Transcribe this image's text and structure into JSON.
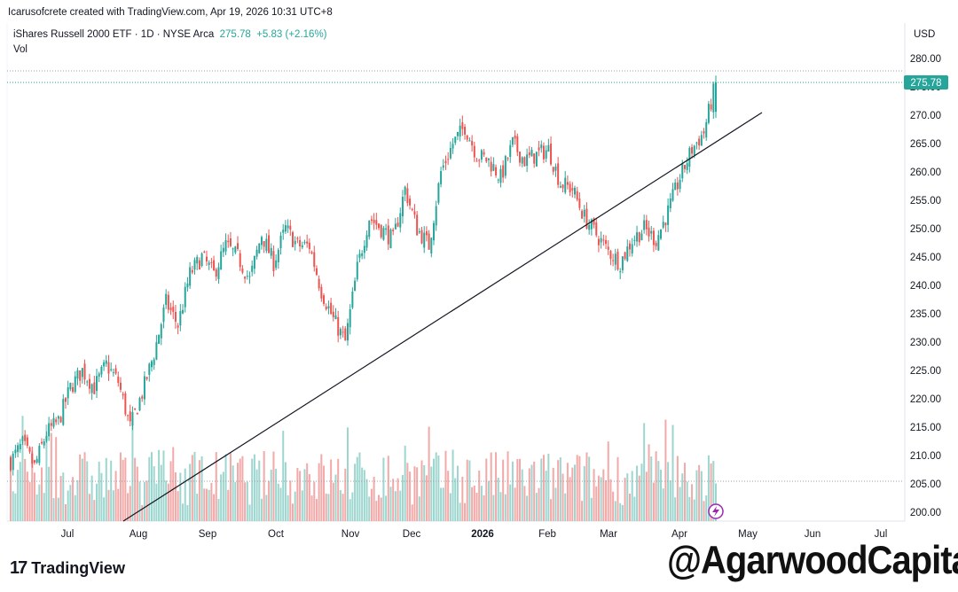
{
  "header": "Icarusofcrete created with TradingView.com, Apr 19, 2026 10:31 UTC+8",
  "legend": {
    "symbol": "iShares Russell 2000 ETF · 1D · NYSE Arca",
    "price": "275.78",
    "change": "+5.83 (+2.16%)",
    "vol_label": "Vol"
  },
  "currency": "USD",
  "price_tag": "275.78",
  "logo": {
    "mark": "17",
    "name": "TradingView"
  },
  "watermark": "@AgarwoodCapital",
  "colors": {
    "up": "#26a69a",
    "down": "#ef5350",
    "vol_up": "#9dd6cf",
    "vol_down": "#f2a9a8"
  },
  "chart_data": {
    "type": "candlestick",
    "title": "iShares Russell 2000 ETF · 1D · NYSE Arca",
    "ylabel": "USD",
    "ylim": [
      198,
      281
    ],
    "yticks": [
      "280.00",
      "275.00",
      "270.00",
      "265.00",
      "260.00",
      "255.00",
      "250.00",
      "245.00",
      "240.00",
      "235.00",
      "230.00",
      "225.00",
      "220.00",
      "215.00",
      "210.00",
      "205.00",
      "200.00"
    ],
    "xticks": [
      "Jul",
      "Aug",
      "Sep",
      "Oct",
      "Nov",
      "Dec",
      "2026",
      "Feb",
      "Mar",
      "Apr",
      "May",
      "Jun",
      "Jul"
    ],
    "close_path": [
      [
        0,
        209
      ],
      [
        5,
        212
      ],
      [
        10,
        208
      ],
      [
        15,
        214
      ],
      [
        20,
        216
      ],
      [
        25,
        222
      ],
      [
        30,
        225
      ],
      [
        35,
        222
      ],
      [
        40,
        226
      ],
      [
        45,
        223
      ],
      [
        50,
        215
      ],
      [
        55,
        221
      ],
      [
        60,
        228
      ],
      [
        65,
        237
      ],
      [
        70,
        233
      ],
      [
        75,
        242
      ],
      [
        80,
        245
      ],
      [
        85,
        242
      ],
      [
        90,
        247
      ],
      [
        95,
        245
      ],
      [
        100,
        241
      ],
      [
        105,
        249
      ],
      [
        110,
        244
      ],
      [
        115,
        250
      ],
      [
        120,
        247
      ],
      [
        125,
        247
      ],
      [
        130,
        239
      ],
      [
        135,
        234
      ],
      [
        140,
        230
      ],
      [
        145,
        243
      ],
      [
        150,
        252
      ],
      [
        155,
        250
      ],
      [
        160,
        248
      ],
      [
        165,
        257
      ],
      [
        170,
        250
      ],
      [
        175,
        247
      ],
      [
        180,
        260
      ],
      [
        185,
        265
      ],
      [
        190,
        268
      ],
      [
        195,
        263
      ],
      [
        200,
        262
      ],
      [
        205,
        259
      ],
      [
        210,
        265
      ],
      [
        215,
        262
      ],
      [
        220,
        263
      ],
      [
        225,
        264
      ],
      [
        230,
        258
      ],
      [
        235,
        257
      ],
      [
        240,
        252
      ],
      [
        245,
        249
      ],
      [
        250,
        246
      ],
      [
        255,
        244
      ],
      [
        260,
        248
      ],
      [
        265,
        250
      ],
      [
        270,
        248
      ],
      [
        275,
        253
      ],
      [
        280,
        259
      ],
      [
        285,
        264
      ],
      [
        290,
        267
      ],
      [
        295,
        275.78
      ]
    ],
    "volume_range": [
      0,
      350
    ],
    "trendline": {
      "from": [
        "2025-08-13",
        198.5
      ],
      "to": [
        "2026-04-30",
        270.2
      ],
      "note": "ascending support line touching Nov low"
    },
    "last_close": 275.78,
    "change": 5.83,
    "change_pct": 2.16
  }
}
